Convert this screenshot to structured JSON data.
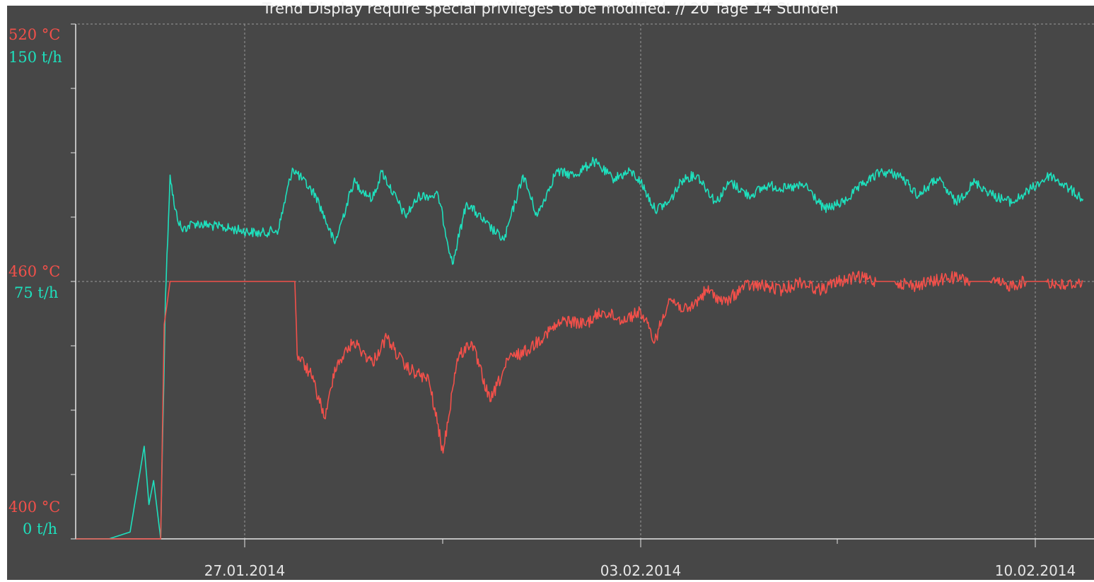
{
  "title": "Trend Display require special privileges to be modified. // 20 Tage 14 Stunden",
  "colors": {
    "background": "#474747",
    "temperature": "#f2504a",
    "flow": "#1ee0bd",
    "grid": "#9a9a9a",
    "axis": "#e6e6e6"
  },
  "chart_data": {
    "type": "line",
    "title": "Trend Display require special privileges to be modified. // 20 Tage 14 Stunden",
    "x_ticks": [
      "27.01.2014",
      "03.02.2014",
      "10.02.2014"
    ],
    "x_range": [
      "2014-01-24",
      "2014-02-10"
    ],
    "grid": true,
    "y_axes": [
      {
        "name": "temperature",
        "unit": "°C",
        "range": [
          400,
          520
        ],
        "tick_labels": [
          "520 °C",
          "460 °C",
          "400 °C"
        ]
      },
      {
        "name": "flow",
        "unit": "t/h",
        "range": [
          0,
          150
        ],
        "tick_labels": [
          "150 t/h",
          "75 t/h",
          "0 t/h"
        ]
      }
    ],
    "series": [
      {
        "axis": "flow",
        "color": "#1ee0bd",
        "points": [
          [
            "2014-01-24 00:00",
            0
          ],
          [
            "2014-01-24 14:00",
            0
          ],
          [
            "2014-01-24 23:00",
            2
          ],
          [
            "2014-01-25 05:00",
            27
          ],
          [
            "2014-01-25 07:00",
            10
          ],
          [
            "2014-01-25 09:00",
            17
          ],
          [
            "2014-01-25 12:00",
            0
          ],
          [
            "2014-01-25 14:00",
            70
          ],
          [
            "2014-01-25 16:00",
            106
          ],
          [
            "2014-01-25 18:00",
            96
          ],
          [
            "2014-01-25 21:00",
            90
          ],
          [
            "2014-01-26 02:00",
            92
          ],
          [
            "2014-01-26 12:00",
            91
          ],
          [
            "2014-01-27 06:00",
            89
          ],
          [
            "2014-01-27 14:00",
            90
          ],
          [
            "2014-01-27 20:00",
            108
          ],
          [
            "2014-01-28 06:00",
            100
          ],
          [
            "2014-01-28 14:00",
            86
          ],
          [
            "2014-01-28 22:00",
            104
          ],
          [
            "2014-01-29 06:00",
            99
          ],
          [
            "2014-01-29 10:00",
            107
          ],
          [
            "2014-01-29 20:00",
            94
          ],
          [
            "2014-01-30 02:00",
            100
          ],
          [
            "2014-01-30 10:00",
            100
          ],
          [
            "2014-01-30 16:00",
            80
          ],
          [
            "2014-01-30 22:00",
            98
          ],
          [
            "2014-01-31 06:00",
            92
          ],
          [
            "2014-01-31 14:00",
            87
          ],
          [
            "2014-01-31 22:00",
            106
          ],
          [
            "2014-02-01 04:00",
            94
          ],
          [
            "2014-02-01 12:00",
            107
          ],
          [
            "2014-02-01 20:00",
            106
          ],
          [
            "2014-02-02 04:00",
            110
          ],
          [
            "2014-02-02 12:00",
            105
          ],
          [
            "2014-02-02 20:00",
            107
          ],
          [
            "2014-02-03 00:00",
            104
          ],
          [
            "2014-02-03 06:00",
            96
          ],
          [
            "2014-02-03 12:00",
            98
          ],
          [
            "2014-02-03 18:00",
            105
          ],
          [
            "2014-02-04 00:00",
            106
          ],
          [
            "2014-02-04 08:00",
            98
          ],
          [
            "2014-02-04 14:00",
            104
          ],
          [
            "2014-02-04 22:00",
            100
          ],
          [
            "2014-02-05 06:00",
            103
          ],
          [
            "2014-02-05 14:00",
            102
          ],
          [
            "2014-02-05 22:00",
            103
          ],
          [
            "2014-02-06 06:00",
            96
          ],
          [
            "2014-02-06 14:00",
            98
          ],
          [
            "2014-02-06 22:00",
            103
          ],
          [
            "2014-02-07 06:00",
            107
          ],
          [
            "2014-02-07 14:00",
            106
          ],
          [
            "2014-02-07 22:00",
            100
          ],
          [
            "2014-02-08 06:00",
            105
          ],
          [
            "2014-02-08 14:00",
            98
          ],
          [
            "2014-02-08 22:00",
            104
          ],
          [
            "2014-02-09 06:00",
            100
          ],
          [
            "2014-02-09 14:00",
            98
          ],
          [
            "2014-02-09 22:00",
            102
          ],
          [
            "2014-02-10 06:00",
            106
          ],
          [
            "2014-02-10 14:00",
            102
          ],
          [
            "2014-02-10 20:00",
            99
          ]
        ]
      },
      {
        "axis": "temperature",
        "color": "#f2504a",
        "points": [
          [
            "2014-01-24 00:00",
            400
          ],
          [
            "2014-01-25 12:00",
            400
          ],
          [
            "2014-01-25 13:30",
            450
          ],
          [
            "2014-01-25 16:00",
            460
          ],
          [
            "2014-01-27 21:00",
            460
          ],
          [
            "2014-01-27 22:00",
            443
          ],
          [
            "2014-01-28 04:00",
            438
          ],
          [
            "2014-01-28 10:00",
            428
          ],
          [
            "2014-01-28 14:00",
            440
          ],
          [
            "2014-01-28 22:00",
            446
          ],
          [
            "2014-01-29 06:00",
            441
          ],
          [
            "2014-01-29 12:00",
            447
          ],
          [
            "2014-01-29 20:00",
            440
          ],
          [
            "2014-01-30 06:00",
            437
          ],
          [
            "2014-01-30 12:00",
            420
          ],
          [
            "2014-01-30 18:00",
            442
          ],
          [
            "2014-01-31 00:00",
            446
          ],
          [
            "2014-01-31 08:00",
            432
          ],
          [
            "2014-01-31 16:00",
            442
          ],
          [
            "2014-02-01 00:00",
            444
          ],
          [
            "2014-02-01 08:00",
            448
          ],
          [
            "2014-02-01 16:00",
            451
          ],
          [
            "2014-02-02 00:00",
            450
          ],
          [
            "2014-02-02 08:00",
            453
          ],
          [
            "2014-02-02 16:00",
            451
          ],
          [
            "2014-02-03 00:00",
            453
          ],
          [
            "2014-02-03 06:00",
            446
          ],
          [
            "2014-02-03 12:00",
            456
          ],
          [
            "2014-02-03 20:00",
            453
          ],
          [
            "2014-02-04 04:00",
            458
          ],
          [
            "2014-02-04 12:00",
            455
          ],
          [
            "2014-02-04 20:00",
            459
          ],
          [
            "2014-02-05 04:00",
            459
          ],
          [
            "2014-02-05 12:00",
            458
          ],
          [
            "2014-02-05 20:00",
            460
          ],
          [
            "2014-02-06 04:00",
            458
          ],
          [
            "2014-02-06 12:00",
            460
          ],
          [
            "2014-02-06 20:00",
            461
          ],
          [
            "2014-02-07 04:00",
            460
          ],
          [
            "2014-02-07 12:00",
            460
          ],
          [
            "2014-02-07 20:00",
            459
          ],
          [
            "2014-02-08 04:00",
            460
          ],
          [
            "2014-02-08 12:00",
            461
          ],
          [
            "2014-02-08 20:00",
            460
          ],
          [
            "2014-02-09 04:00",
            460
          ],
          [
            "2014-02-09 12:00",
            459
          ],
          [
            "2014-02-09 20:00",
            460
          ],
          [
            "2014-02-10 04:00",
            460
          ],
          [
            "2014-02-10 12:00",
            459
          ],
          [
            "2014-02-10 20:00",
            460
          ]
        ]
      }
    ]
  }
}
